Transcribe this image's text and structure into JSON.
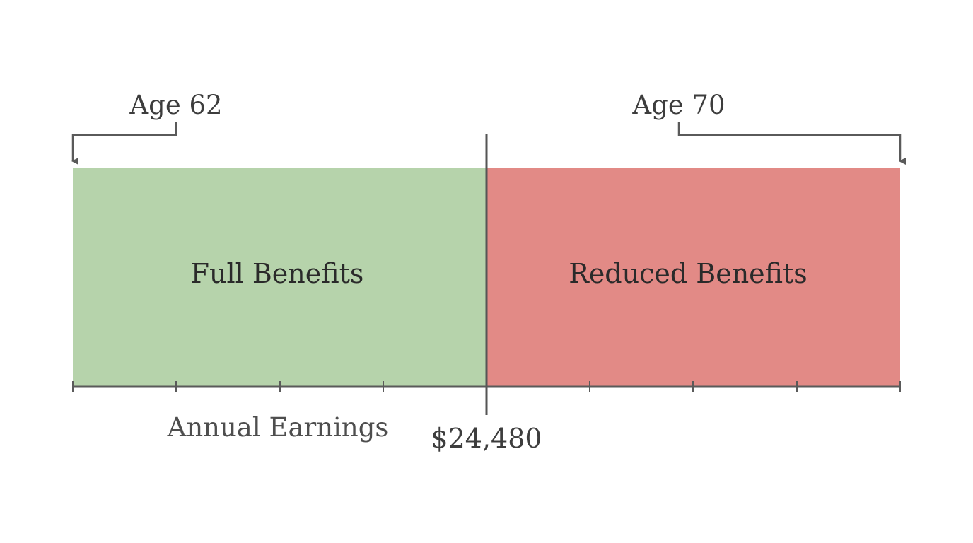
{
  "diagram": {
    "age_start_label": "Age 62",
    "age_end_label": "Age 70",
    "left_region_label": "Full Benefits",
    "right_region_label": "Reduced Benefits",
    "axis_label": "Annual Earnings",
    "threshold_label": "$24,480",
    "colors": {
      "full_benefits": "#b6d3ab",
      "reduced_benefits": "#e28a86",
      "lines": "#5a5a5a",
      "text": "#3d3d3d"
    }
  }
}
